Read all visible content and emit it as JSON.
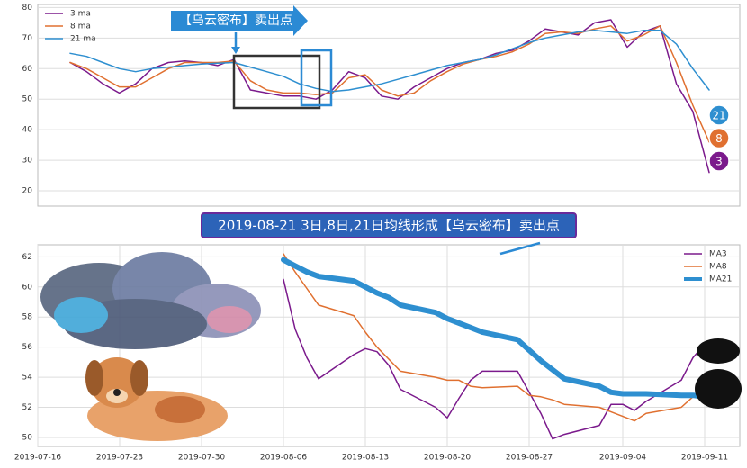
{
  "chart_data": [
    {
      "type": "line",
      "legend": "upper left",
      "grid": true,
      "ylim": [
        15,
        81
      ],
      "yticks": [
        20,
        30,
        40,
        50,
        60,
        70,
        80
      ],
      "annotation": "【乌云密布】卖出点",
      "badges": [
        "21",
        "8",
        "3"
      ],
      "series": [
        {
          "name": "3 ma",
          "color": "#7b1a8c",
          "width": 1.5,
          "values": [
            62,
            59,
            55,
            52,
            55,
            60,
            62,
            62.5,
            62,
            61,
            63,
            53,
            52,
            51,
            51,
            50,
            53,
            59,
            57,
            51,
            50,
            54,
            57,
            60,
            62,
            63,
            65,
            66,
            69,
            73,
            72,
            71,
            75,
            76,
            67,
            72,
            74,
            55,
            46,
            26
          ]
        },
        {
          "name": "8 ma",
          "color": "#e07030",
          "width": 1.5,
          "values": [
            62,
            60,
            57,
            54,
            54,
            57,
            60,
            62,
            62,
            62,
            62.5,
            56,
            53,
            52,
            52,
            51.5,
            52,
            57,
            58,
            53,
            51,
            52,
            56,
            59,
            61.5,
            63,
            64,
            65.5,
            68,
            71.5,
            72,
            71.5,
            73,
            74,
            69,
            71,
            74,
            62,
            48,
            36
          ]
        },
        {
          "name": "21 ma",
          "color": "#2e8fd0",
          "width": 1.5,
          "values": [
            65,
            64,
            62,
            60,
            59,
            60,
            60.5,
            61,
            61.5,
            61.8,
            62,
            60.5,
            59,
            57.5,
            55,
            53.5,
            52.5,
            53,
            54,
            55,
            56.5,
            58,
            59.5,
            61,
            62,
            63,
            64.5,
            66.5,
            68.5,
            70,
            71,
            72,
            72.5,
            72,
            71.5,
            72.5,
            72.5,
            68,
            60,
            53
          ]
        }
      ]
    },
    {
      "type": "line",
      "legend": "upper right",
      "grid": true,
      "annotation": "2019-08-21 3日,8日,21日均线形成【乌云密布】卖出点",
      "xlim": [
        "2019-07-16",
        "2019-09-14"
      ],
      "xticks": [
        "2019-07-16",
        "2019-07-23",
        "2019-07-30",
        "2019-08-06",
        "2019-08-13",
        "2019-08-20",
        "2019-08-27",
        "2019-09-04",
        "2019-09-11"
      ],
      "ylim": [
        49.4,
        62.8
      ],
      "yticks": [
        50,
        52,
        54,
        56,
        58,
        60,
        62
      ],
      "x": [
        "2019-08-06",
        "2019-08-07",
        "2019-08-08",
        "2019-08-09",
        "2019-08-12",
        "2019-08-13",
        "2019-08-14",
        "2019-08-15",
        "2019-08-16",
        "2019-08-19",
        "2019-08-20",
        "2019-08-21",
        "2019-08-22",
        "2019-08-23",
        "2019-08-26",
        "2019-08-27",
        "2019-08-28",
        "2019-08-29",
        "2019-08-30",
        "2019-09-02",
        "2019-09-03",
        "2019-09-04",
        "2019-09-05",
        "2019-09-06",
        "2019-09-09",
        "2019-09-10",
        "2019-09-11"
      ],
      "series": [
        {
          "name": "MA3",
          "color": "#7b1a8c",
          "width": 1.5,
          "values": [
            60.5,
            57.2,
            55.3,
            53.9,
            55.5,
            55.9,
            55.7,
            54.8,
            53.2,
            52.0,
            51.3,
            52.6,
            53.8,
            54.4,
            54.4,
            53.0,
            51.6,
            49.9,
            50.2,
            50.8,
            52.2,
            52.2,
            51.8,
            52.4,
            53.8,
            55.3,
            56.2
          ]
        },
        {
          "name": "MA8",
          "color": "#e07030",
          "width": 1.5,
          "values": [
            62.2,
            61.0,
            59.9,
            58.8,
            58.1,
            57.0,
            56.0,
            55.2,
            54.4,
            54.0,
            53.8,
            53.8,
            53.4,
            53.3,
            53.4,
            52.8,
            52.7,
            52.5,
            52.2,
            52.0,
            51.7,
            51.4,
            51.1,
            51.6,
            52.0,
            52.7,
            53.3
          ]
        },
        {
          "name": "MA21",
          "color": "#2e8fd0",
          "width": 6,
          "values": [
            61.8,
            61.4,
            61.0,
            60.7,
            60.4,
            60.0,
            59.6,
            59.3,
            58.8,
            58.3,
            57.9,
            57.6,
            57.3,
            57.0,
            56.5,
            55.8,
            55.1,
            54.5,
            53.9,
            53.4,
            53.0,
            52.9,
            52.9,
            52.9,
            52.8,
            52.8,
            52.7
          ]
        }
      ]
    }
  ]
}
